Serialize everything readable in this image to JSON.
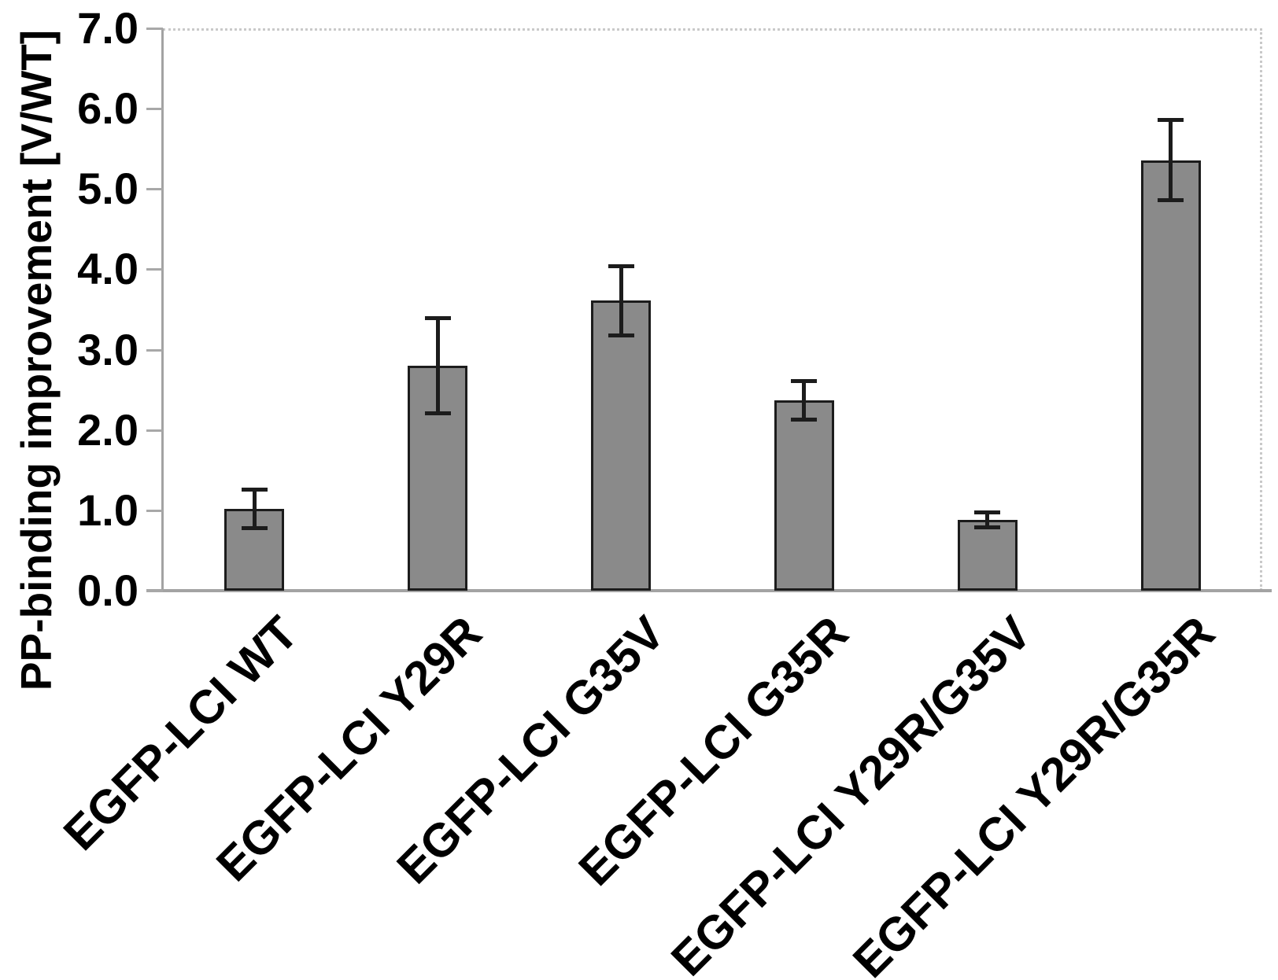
{
  "chart_data": {
    "type": "bar",
    "categories": [
      "EGFP-LCI WT",
      "EGFP-LCI Y29R",
      "EGFP-LCI G35V",
      "EGFP-LCI G35R",
      "EGFP-LCI Y29R/G35V",
      "EGFP-LCI Y29R/G35R"
    ],
    "values": [
      1.02,
      2.8,
      3.61,
      2.37,
      0.88,
      5.36
    ],
    "error_bars": [
      0.24,
      0.59,
      0.43,
      0.24,
      0.09,
      0.5
    ],
    "title": "",
    "xlabel": "",
    "ylabel": "PP-binding improvement [V/WT]",
    "ylim": [
      0.0,
      7.0
    ],
    "ytick_step": 1.0,
    "ytick_labels": [
      "0.0",
      "1.0",
      "2.0",
      "3.0",
      "4.0",
      "5.0",
      "6.0",
      "7.0"
    ],
    "grid": false,
    "legend_position": "none",
    "x_label_rotation_deg": 45,
    "colors": {
      "bar_fill": "#8a8a8a",
      "bar_border": "#1c1c1c",
      "error_bar": "#1c1c1c",
      "axis": "#a3a3a3",
      "frame_dotted": "#c9c9c9",
      "text": "#000000",
      "background": "#ffffff"
    }
  }
}
